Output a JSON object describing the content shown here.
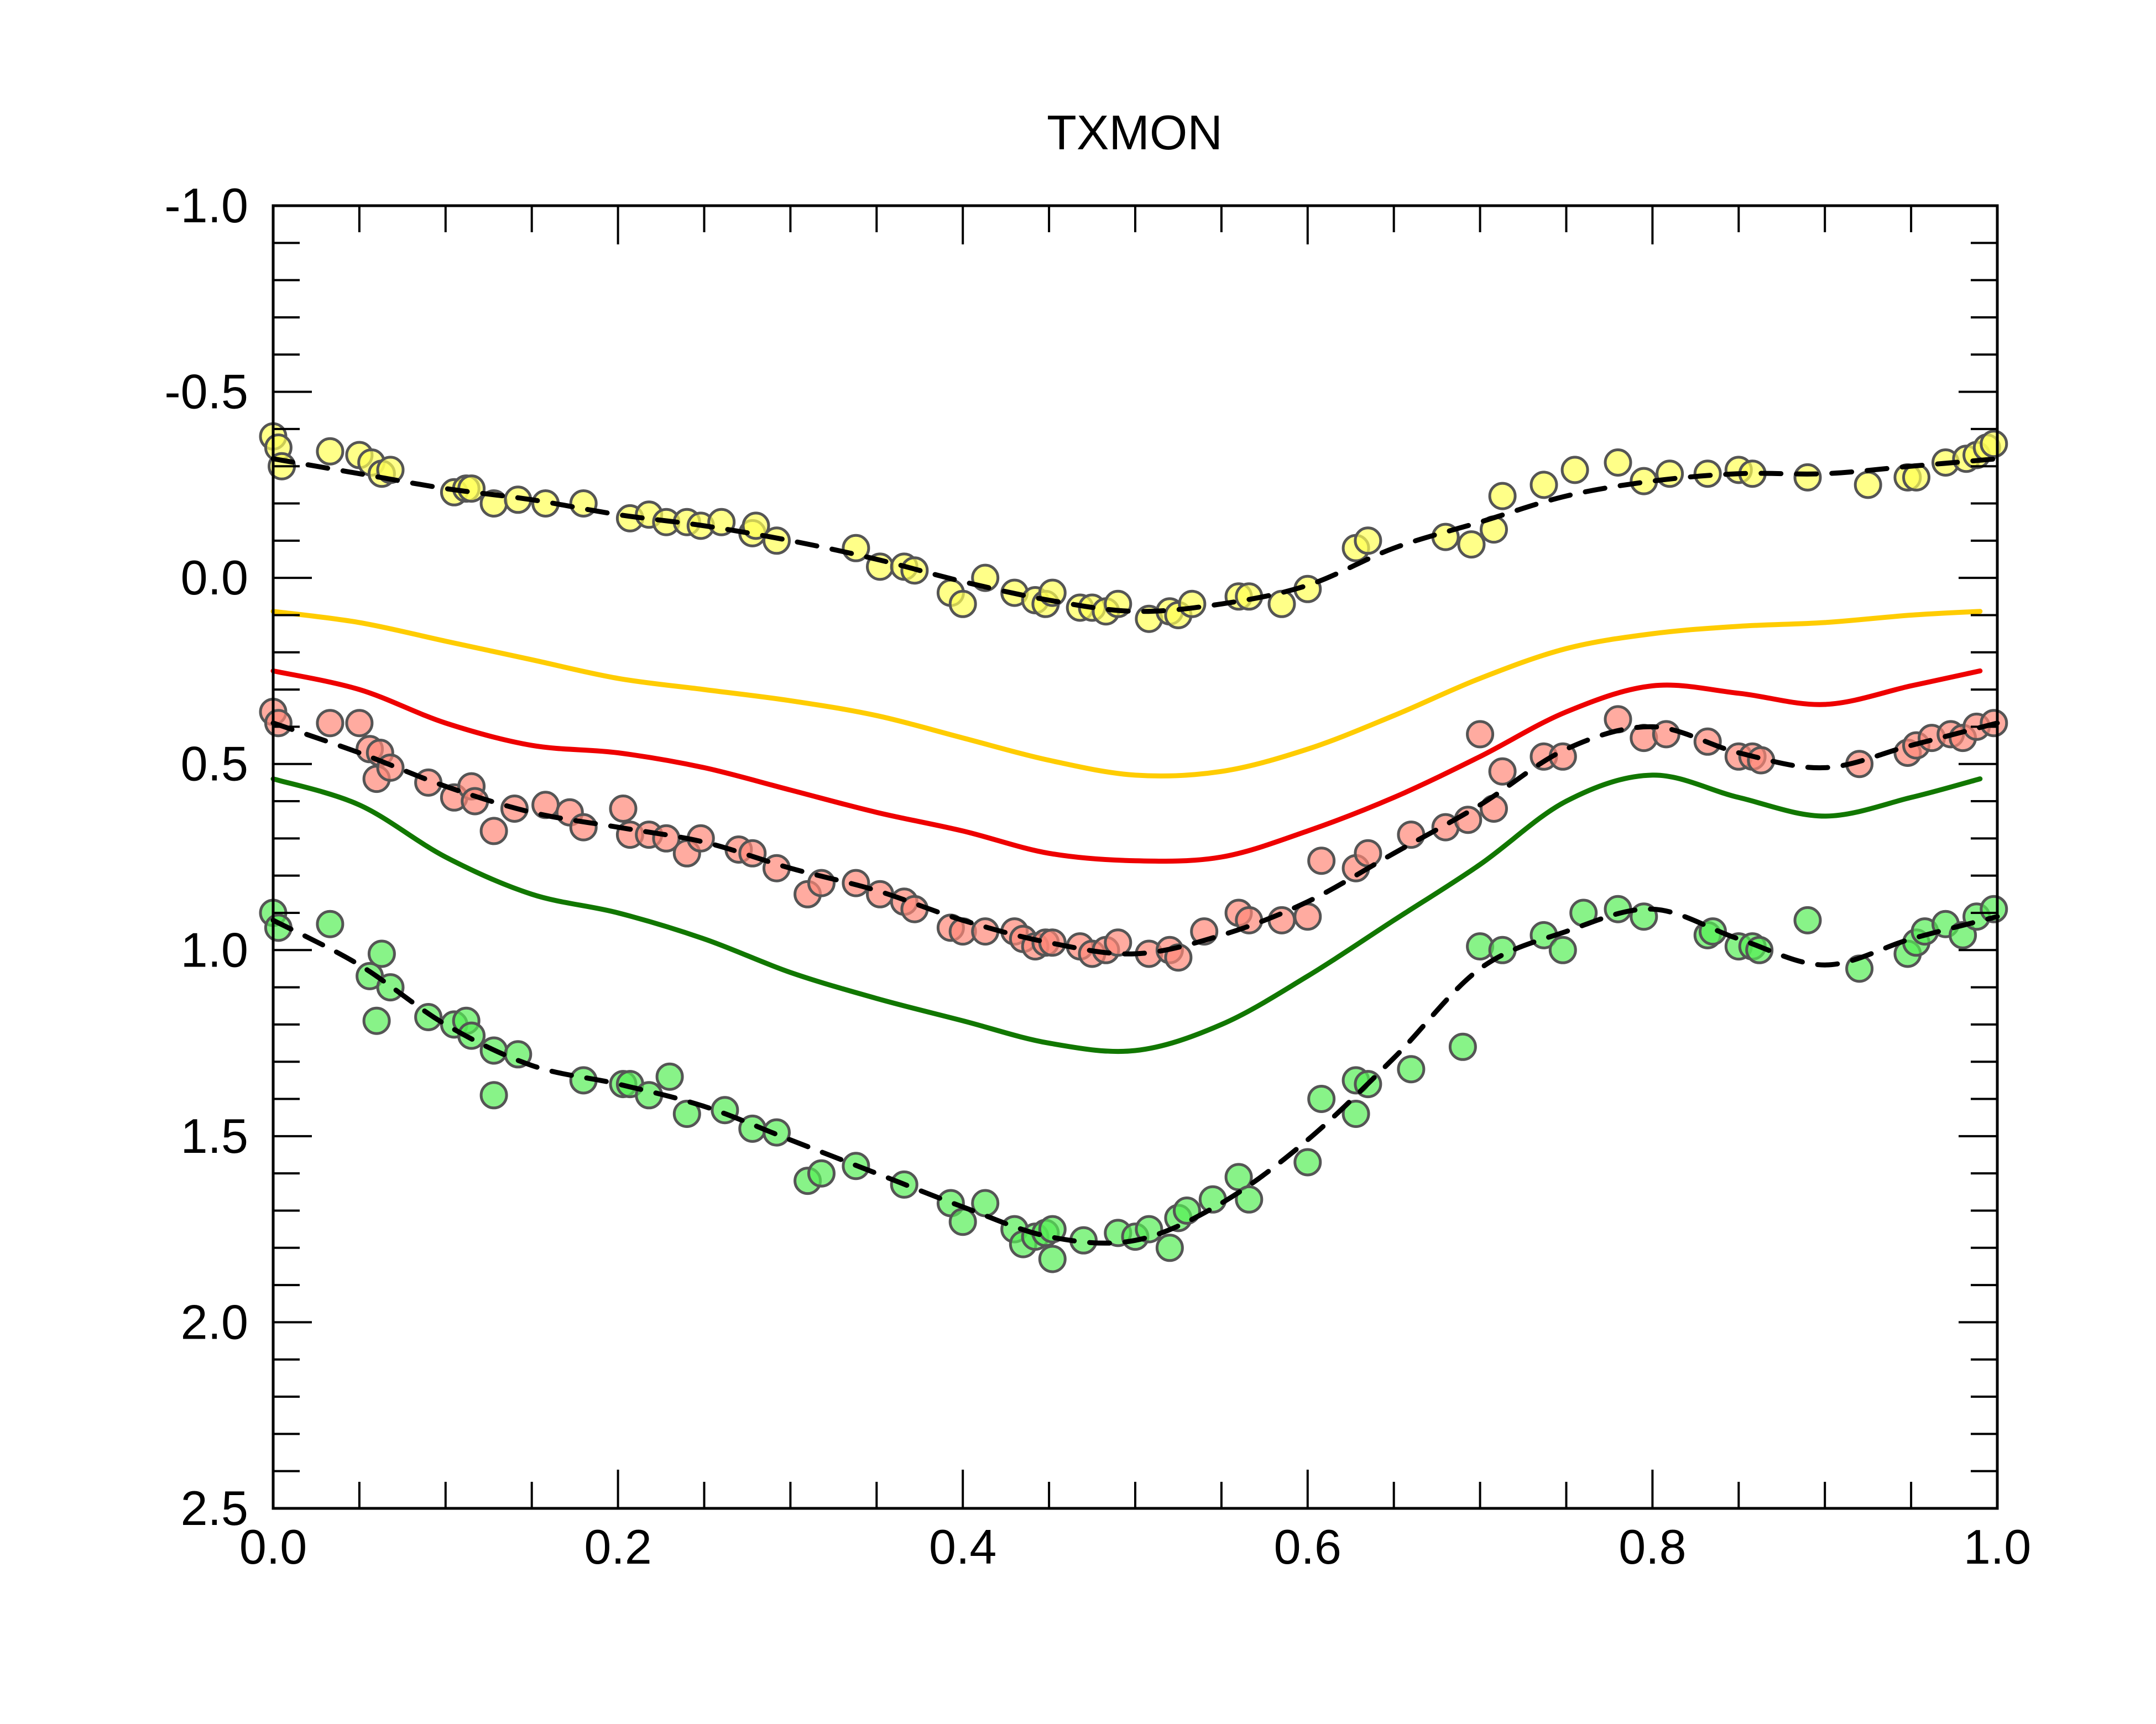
{
  "chart_data": {
    "type": "scatter",
    "title": "TXMON",
    "xlabel": "",
    "ylabel": "",
    "xlim": [
      0.0,
      1.0
    ],
    "ylim": [
      -1.0,
      2.5
    ],
    "y_inverted": true,
    "grid": false,
    "legend": "none",
    "x_ticks": [
      {
        "value": 0.0,
        "label": "0.0"
      },
      {
        "value": 0.2,
        "label": "0.2"
      },
      {
        "value": 0.4,
        "label": "0.4"
      },
      {
        "value": 0.6,
        "label": "0.6"
      },
      {
        "value": 0.8,
        "label": "0.8"
      },
      {
        "value": 1.0,
        "label": "1.0"
      }
    ],
    "y_ticks": [
      {
        "value": -1.0,
        "label": "-1.0"
      },
      {
        "value": -0.5,
        "label": "-0.5"
      },
      {
        "value": 0.0,
        "label": "0.0"
      },
      {
        "value": 0.5,
        "label": "0.5"
      },
      {
        "value": 1.0,
        "label": "1.0"
      },
      {
        "value": 1.5,
        "label": "1.5"
      },
      {
        "value": 2.0,
        "label": "2.0"
      },
      {
        "value": 2.5,
        "label": "2.5"
      }
    ],
    "x_minor_step": 0.05,
    "y_minor_step": 0.1,
    "scatter_series": [
      {
        "color": "#ffff55",
        "edge": "#555555",
        "points": [
          [
            0.0,
            -0.38
          ],
          [
            0.003,
            -0.35
          ],
          [
            0.005,
            -0.3
          ],
          [
            0.033,
            -0.34
          ],
          [
            0.05,
            -0.33
          ],
          [
            0.057,
            -0.31
          ],
          [
            0.063,
            -0.28
          ],
          [
            0.068,
            -0.29
          ],
          [
            0.105,
            -0.23
          ],
          [
            0.112,
            -0.24
          ],
          [
            0.115,
            -0.24
          ],
          [
            0.128,
            -0.2
          ],
          [
            0.142,
            -0.21
          ],
          [
            0.158,
            -0.2
          ],
          [
            0.18,
            -0.2
          ],
          [
            0.207,
            -0.16
          ],
          [
            0.218,
            -0.17
          ],
          [
            0.228,
            -0.15
          ],
          [
            0.24,
            -0.15
          ],
          [
            0.248,
            -0.14
          ],
          [
            0.26,
            -0.15
          ],
          [
            0.278,
            -0.12
          ],
          [
            0.28,
            -0.14
          ],
          [
            0.292,
            -0.1
          ],
          [
            0.338,
            -0.08
          ],
          [
            0.352,
            -0.03
          ],
          [
            0.366,
            -0.03
          ],
          [
            0.372,
            -0.02
          ],
          [
            0.393,
            0.04
          ],
          [
            0.4,
            0.07
          ],
          [
            0.413,
            0.0
          ],
          [
            0.43,
            0.04
          ],
          [
            0.442,
            0.06
          ],
          [
            0.448,
            0.07
          ],
          [
            0.452,
            0.04
          ],
          [
            0.468,
            0.08
          ],
          [
            0.475,
            0.08
          ],
          [
            0.483,
            0.09
          ],
          [
            0.49,
            0.07
          ],
          [
            0.508,
            0.11
          ],
          [
            0.52,
            0.09
          ],
          [
            0.525,
            0.1
          ],
          [
            0.533,
            0.07
          ],
          [
            0.56,
            0.05
          ],
          [
            0.566,
            0.05
          ],
          [
            0.585,
            0.07
          ],
          [
            0.6,
            0.03
          ],
          [
            0.628,
            -0.08
          ],
          [
            0.635,
            -0.1
          ],
          [
            0.68,
            -0.11
          ],
          [
            0.695,
            -0.09
          ],
          [
            0.708,
            -0.13
          ],
          [
            0.713,
            -0.22
          ],
          [
            0.737,
            -0.25
          ],
          [
            0.755,
            -0.29
          ],
          [
            0.78,
            -0.31
          ],
          [
            0.795,
            -0.26
          ],
          [
            0.81,
            -0.28
          ],
          [
            0.832,
            -0.28
          ],
          [
            0.85,
            -0.29
          ],
          [
            0.858,
            -0.28
          ],
          [
            0.89,
            -0.27
          ],
          [
            0.925,
            -0.25
          ],
          [
            0.948,
            -0.27
          ],
          [
            0.953,
            -0.27
          ],
          [
            0.97,
            -0.31
          ],
          [
            0.982,
            -0.32
          ],
          [
            0.988,
            -0.33
          ],
          [
            0.994,
            -0.35
          ],
          [
            0.998,
            -0.36
          ]
        ]
      },
      {
        "color": "#ff8877",
        "edge": "#555555",
        "points": [
          [
            0.0,
            0.36
          ],
          [
            0.003,
            0.39
          ],
          [
            0.033,
            0.39
          ],
          [
            0.05,
            0.39
          ],
          [
            0.056,
            0.46
          ],
          [
            0.062,
            0.47
          ],
          [
            0.06,
            0.54
          ],
          [
            0.068,
            0.51
          ],
          [
            0.09,
            0.55
          ],
          [
            0.105,
            0.59
          ],
          [
            0.115,
            0.56
          ],
          [
            0.117,
            0.6
          ],
          [
            0.128,
            0.68
          ],
          [
            0.14,
            0.62
          ],
          [
            0.158,
            0.61
          ],
          [
            0.172,
            0.63
          ],
          [
            0.18,
            0.67
          ],
          [
            0.203,
            0.62
          ],
          [
            0.207,
            0.69
          ],
          [
            0.218,
            0.69
          ],
          [
            0.228,
            0.7
          ],
          [
            0.24,
            0.74
          ],
          [
            0.248,
            0.7
          ],
          [
            0.27,
            0.73
          ],
          [
            0.278,
            0.74
          ],
          [
            0.292,
            0.78
          ],
          [
            0.31,
            0.85
          ],
          [
            0.318,
            0.82
          ],
          [
            0.338,
            0.82
          ],
          [
            0.352,
            0.85
          ],
          [
            0.366,
            0.87
          ],
          [
            0.372,
            0.89
          ],
          [
            0.393,
            0.94
          ],
          [
            0.4,
            0.95
          ],
          [
            0.413,
            0.95
          ],
          [
            0.43,
            0.95
          ],
          [
            0.435,
            0.97
          ],
          [
            0.442,
            0.99
          ],
          [
            0.448,
            0.98
          ],
          [
            0.452,
            0.98
          ],
          [
            0.468,
            0.99
          ],
          [
            0.475,
            1.01
          ],
          [
            0.483,
            1.0
          ],
          [
            0.49,
            0.98
          ],
          [
            0.508,
            1.01
          ],
          [
            0.52,
            1.0
          ],
          [
            0.525,
            1.02
          ],
          [
            0.54,
            0.95
          ],
          [
            0.56,
            0.9
          ],
          [
            0.566,
            0.92
          ],
          [
            0.585,
            0.92
          ],
          [
            0.6,
            0.91
          ],
          [
            0.608,
            0.76
          ],
          [
            0.628,
            0.78
          ],
          [
            0.635,
            0.74
          ],
          [
            0.66,
            0.69
          ],
          [
            0.68,
            0.67
          ],
          [
            0.693,
            0.65
          ],
          [
            0.7,
            0.42
          ],
          [
            0.708,
            0.62
          ],
          [
            0.713,
            0.52
          ],
          [
            0.737,
            0.48
          ],
          [
            0.748,
            0.48
          ],
          [
            0.78,
            0.38
          ],
          [
            0.795,
            0.43
          ],
          [
            0.808,
            0.42
          ],
          [
            0.832,
            0.44
          ],
          [
            0.85,
            0.48
          ],
          [
            0.858,
            0.48
          ],
          [
            0.863,
            0.49
          ],
          [
            0.92,
            0.5
          ],
          [
            0.948,
            0.47
          ],
          [
            0.953,
            0.45
          ],
          [
            0.962,
            0.43
          ],
          [
            0.973,
            0.42
          ],
          [
            0.98,
            0.43
          ],
          [
            0.988,
            0.4
          ],
          [
            0.998,
            0.39
          ]
        ]
      },
      {
        "color": "#55ee55",
        "edge": "#555555",
        "points": [
          [
            0.0,
            0.9
          ],
          [
            0.003,
            0.94
          ],
          [
            0.033,
            0.93
          ],
          [
            0.056,
            1.07
          ],
          [
            0.06,
            1.19
          ],
          [
            0.063,
            1.01
          ],
          [
            0.068,
            1.1
          ],
          [
            0.09,
            1.18
          ],
          [
            0.105,
            1.2
          ],
          [
            0.112,
            1.19
          ],
          [
            0.115,
            1.23
          ],
          [
            0.128,
            1.27
          ],
          [
            0.128,
            1.39
          ],
          [
            0.142,
            1.28
          ],
          [
            0.18,
            1.35
          ],
          [
            0.203,
            1.36
          ],
          [
            0.207,
            1.36
          ],
          [
            0.218,
            1.39
          ],
          [
            0.23,
            1.34
          ],
          [
            0.24,
            1.44
          ],
          [
            0.262,
            1.43
          ],
          [
            0.278,
            1.48
          ],
          [
            0.292,
            1.49
          ],
          [
            0.31,
            1.62
          ],
          [
            0.318,
            1.6
          ],
          [
            0.338,
            1.58
          ],
          [
            0.366,
            1.63
          ],
          [
            0.393,
            1.68
          ],
          [
            0.4,
            1.73
          ],
          [
            0.413,
            1.68
          ],
          [
            0.43,
            1.75
          ],
          [
            0.435,
            1.79
          ],
          [
            0.442,
            1.77
          ],
          [
            0.448,
            1.76
          ],
          [
            0.452,
            1.83
          ],
          [
            0.452,
            1.75
          ],
          [
            0.47,
            1.78
          ],
          [
            0.49,
            1.76
          ],
          [
            0.5,
            1.77
          ],
          [
            0.508,
            1.75
          ],
          [
            0.52,
            1.8
          ],
          [
            0.525,
            1.72
          ],
          [
            0.53,
            1.7
          ],
          [
            0.545,
            1.67
          ],
          [
            0.56,
            1.61
          ],
          [
            0.566,
            1.67
          ],
          [
            0.6,
            1.57
          ],
          [
            0.608,
            1.4
          ],
          [
            0.628,
            1.35
          ],
          [
            0.628,
            1.44
          ],
          [
            0.635,
            1.36
          ],
          [
            0.66,
            1.32
          ],
          [
            0.69,
            1.26
          ],
          [
            0.7,
            0.99
          ],
          [
            0.713,
            1.0
          ],
          [
            0.737,
            0.96
          ],
          [
            0.748,
            1.0
          ],
          [
            0.76,
            0.9
          ],
          [
            0.78,
            0.89
          ],
          [
            0.795,
            0.91
          ],
          [
            0.832,
            0.96
          ],
          [
            0.835,
            0.95
          ],
          [
            0.85,
            0.99
          ],
          [
            0.858,
            0.99
          ],
          [
            0.862,
            1.0
          ],
          [
            0.89,
            0.92
          ],
          [
            0.92,
            1.05
          ],
          [
            0.948,
            1.01
          ],
          [
            0.953,
            0.98
          ],
          [
            0.958,
            0.95
          ],
          [
            0.97,
            0.93
          ],
          [
            0.98,
            0.96
          ],
          [
            0.988,
            0.91
          ],
          [
            0.998,
            0.89
          ]
        ]
      }
    ],
    "dashed_fits": [
      {
        "color": "#000000",
        "x": [
          0.0,
          0.05,
          0.1,
          0.15,
          0.2,
          0.25,
          0.3,
          0.35,
          0.4,
          0.45,
          0.5,
          0.55,
          0.6,
          0.65,
          0.7,
          0.75,
          0.8,
          0.85,
          0.9,
          0.95,
          1.0
        ],
        "y": [
          -0.32,
          -0.28,
          -0.24,
          -0.21,
          -0.17,
          -0.14,
          -0.1,
          -0.05,
          0.01,
          0.06,
          0.09,
          0.07,
          0.02,
          -0.08,
          -0.15,
          -0.22,
          -0.26,
          -0.28,
          -0.28,
          -0.3,
          -0.32
        ]
      },
      {
        "color": "#000000",
        "x": [
          0.0,
          0.05,
          0.1,
          0.15,
          0.2,
          0.25,
          0.3,
          0.35,
          0.4,
          0.45,
          0.5,
          0.55,
          0.6,
          0.65,
          0.7,
          0.75,
          0.8,
          0.85,
          0.9,
          0.95,
          1.0
        ],
        "y": [
          0.39,
          0.47,
          0.56,
          0.63,
          0.67,
          0.71,
          0.78,
          0.84,
          0.92,
          0.98,
          1.01,
          0.96,
          0.87,
          0.74,
          0.61,
          0.46,
          0.4,
          0.47,
          0.51,
          0.45,
          0.39
        ]
      },
      {
        "color": "#000000",
        "x": [
          0.0,
          0.05,
          0.1,
          0.15,
          0.2,
          0.25,
          0.3,
          0.35,
          0.4,
          0.45,
          0.5,
          0.55,
          0.6,
          0.65,
          0.7,
          0.75,
          0.8,
          0.85,
          0.9,
          0.95,
          1.0
        ],
        "y": [
          0.92,
          1.04,
          1.2,
          1.31,
          1.36,
          1.42,
          1.51,
          1.6,
          1.69,
          1.77,
          1.78,
          1.68,
          1.51,
          1.29,
          1.05,
          0.95,
          0.89,
          0.97,
          1.04,
          0.97,
          0.91
        ]
      }
    ],
    "solid_lines": [
      {
        "color": "#ffcc00",
        "x": [
          0.0,
          0.05,
          0.1,
          0.15,
          0.2,
          0.25,
          0.3,
          0.35,
          0.4,
          0.45,
          0.5,
          0.55,
          0.6,
          0.65,
          0.7,
          0.75,
          0.8,
          0.85,
          0.9,
          0.95,
          0.99
        ],
        "y": [
          0.09,
          0.12,
          0.17,
          0.22,
          0.27,
          0.3,
          0.33,
          0.37,
          0.43,
          0.49,
          0.53,
          0.52,
          0.46,
          0.37,
          0.27,
          0.19,
          0.15,
          0.13,
          0.12,
          0.1,
          0.09
        ]
      },
      {
        "color": "#ee0000",
        "x": [
          0.0,
          0.05,
          0.1,
          0.15,
          0.2,
          0.25,
          0.3,
          0.35,
          0.4,
          0.45,
          0.5,
          0.55,
          0.6,
          0.65,
          0.7,
          0.75,
          0.8,
          0.85,
          0.9,
          0.95,
          0.99
        ],
        "y": [
          0.25,
          0.3,
          0.39,
          0.45,
          0.47,
          0.51,
          0.57,
          0.63,
          0.68,
          0.74,
          0.76,
          0.75,
          0.68,
          0.59,
          0.48,
          0.36,
          0.29,
          0.31,
          0.34,
          0.29,
          0.25
        ]
      },
      {
        "color": "#117700",
        "x": [
          0.0,
          0.05,
          0.1,
          0.15,
          0.2,
          0.25,
          0.3,
          0.35,
          0.4,
          0.45,
          0.5,
          0.55,
          0.6,
          0.65,
          0.7,
          0.75,
          0.8,
          0.85,
          0.9,
          0.95,
          0.99
        ],
        "y": [
          0.54,
          0.61,
          0.75,
          0.85,
          0.9,
          0.97,
          1.06,
          1.13,
          1.19,
          1.25,
          1.27,
          1.2,
          1.07,
          0.92,
          0.77,
          0.6,
          0.53,
          0.59,
          0.64,
          0.59,
          0.54
        ]
      }
    ]
  }
}
